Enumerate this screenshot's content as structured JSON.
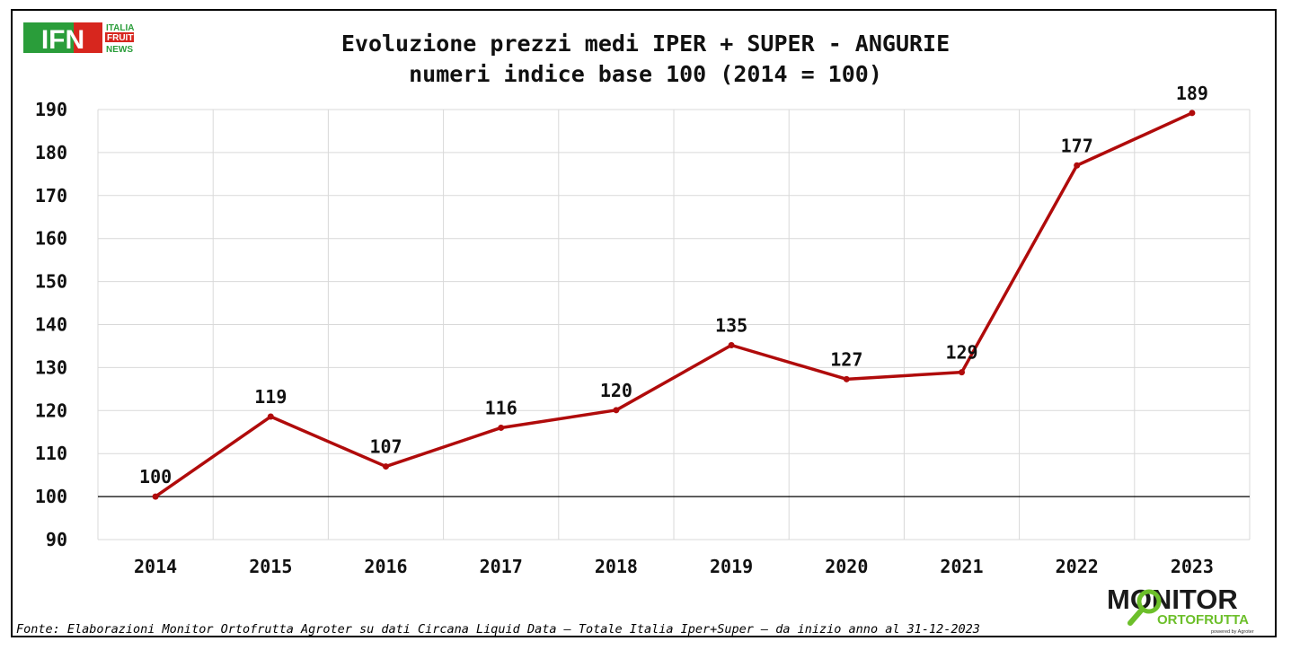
{
  "chart_data": {
    "type": "line",
    "title": "Evoluzione prezzi medi IPER + SUPER - ANGURIE",
    "subtitle": "numeri indice base 100 (2014 = 100)",
    "categories": [
      "2014",
      "2015",
      "2016",
      "2017",
      "2018",
      "2019",
      "2020",
      "2021",
      "2022",
      "2023"
    ],
    "series": [
      {
        "values": [
          100,
          118.6,
          107,
          116,
          120.1,
          135.2,
          127.3,
          128.9,
          177,
          189.2
        ]
      }
    ],
    "data_labels": [
      "100",
      "119",
      "107",
      "116",
      "120",
      "135",
      "127",
      "129",
      "177",
      "189"
    ],
    "yticks": [
      "90",
      "100",
      "110",
      "120",
      "130",
      "140",
      "150",
      "160",
      "170",
      "180",
      "190"
    ],
    "ylim": [
      90,
      190
    ],
    "baseline": 100,
    "grid": true,
    "legend": "none",
    "colors": {
      "line": "#b00b0b",
      "grid": "#d9d9d9",
      "baseline": "#000000"
    }
  },
  "logos": {
    "ifn": {
      "text": "IFN",
      "sub": [
        "ITALIA",
        "FRUIT",
        "NEWS"
      ]
    },
    "monitor": {
      "line1": "MONITOR",
      "line2": "ORTOFRUTTA",
      "line3": "powered by Agroter"
    }
  },
  "source": "Fonte: Elaborazioni Monitor Ortofrutta Agroter su dati Circana Liquid Data – Totale Italia Iper+Super –  da inizio anno al 31-12-2023"
}
